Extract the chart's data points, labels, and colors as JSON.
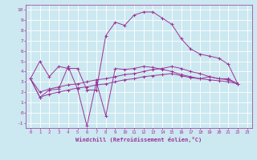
{
  "background_color": "#cce8f0",
  "grid_color": "#ffffff",
  "line_color": "#993399",
  "x_label": "Windchill (Refroidissement éolien,°C)",
  "xlim": [
    -0.5,
    23.5
  ],
  "ylim": [
    -1.5,
    10.5
  ],
  "xticks": [
    0,
    1,
    2,
    3,
    4,
    5,
    6,
    7,
    8,
    9,
    10,
    11,
    12,
    13,
    14,
    15,
    16,
    17,
    18,
    19,
    20,
    21,
    22,
    23
  ],
  "yticks": [
    -1,
    0,
    1,
    2,
    3,
    4,
    5,
    6,
    7,
    8,
    9,
    10
  ],
  "series1": [
    3.3,
    5.0,
    3.5,
    4.5,
    4.3,
    4.3,
    2.2,
    2.2,
    7.5,
    8.8,
    8.5,
    9.5,
    9.8,
    9.8,
    9.2,
    8.6,
    7.2,
    6.2,
    5.7,
    5.5,
    5.3,
    4.7,
    2.8
  ],
  "series2": [
    3.3,
    1.5,
    2.2,
    2.3,
    4.5,
    2.3,
    -1.3,
    3.0,
    -0.3,
    4.3,
    4.2,
    4.3,
    4.5,
    4.4,
    4.2,
    4.0,
    3.7,
    3.5,
    3.3,
    3.5,
    3.3,
    3.3,
    2.8
  ],
  "series3": [
    3.3,
    2.0,
    2.3,
    2.5,
    2.7,
    2.8,
    3.0,
    3.2,
    3.3,
    3.5,
    3.7,
    3.8,
    4.0,
    4.2,
    4.3,
    4.5,
    4.3,
    4.0,
    3.8,
    3.5,
    3.3,
    3.2,
    2.8
  ],
  "series4": [
    3.3,
    1.5,
    1.8,
    2.0,
    2.2,
    2.4,
    2.5,
    2.7,
    2.8,
    3.0,
    3.2,
    3.3,
    3.5,
    3.6,
    3.7,
    3.8,
    3.6,
    3.4,
    3.3,
    3.2,
    3.1,
    3.0,
    2.8
  ]
}
